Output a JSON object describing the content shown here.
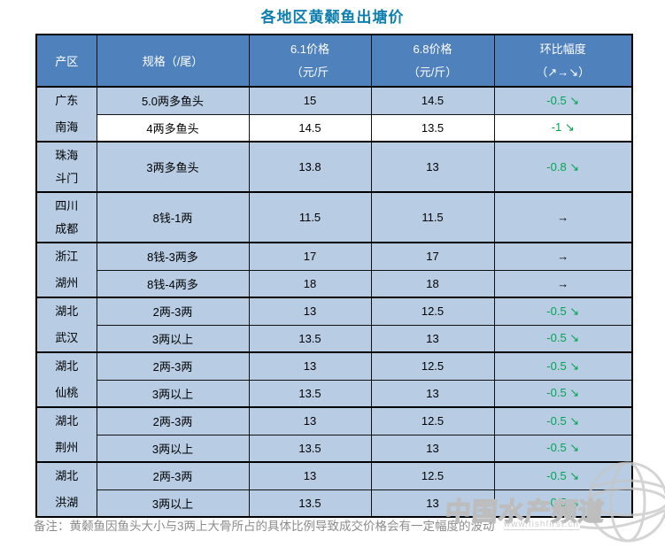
{
  "title": "各地区黄颡鱼出塘价",
  "colors": {
    "title_text": "#0f7fb0",
    "header_bg": "#4f81bd",
    "row_blue": "#b8cce4",
    "row_white": "#ffffff",
    "trend_down_green": "#00a651",
    "note_gray": "#8c8c8c",
    "watermark_gray": "#c3c3c3"
  },
  "table": {
    "header": {
      "region": "产区",
      "spec": "规格（/尾）",
      "p61_line1": "6.1价格",
      "p61_line2": "（元/斤",
      "p68_line1": "6.8价格",
      "p68_line2": "（元/斤）",
      "change_line1": "环比幅度",
      "change_line2": "（↗→↘）"
    },
    "groups": [
      {
        "region_lines": [
          "广东",
          "南海"
        ],
        "rows": [
          {
            "spec": "5.0两多鱼头",
            "p61": "15",
            "p68": "14.5",
            "change": "-0.5",
            "arrow": "↘",
            "trend": "down",
            "bg": "blue",
            "tall": false
          },
          {
            "spec": "4两多鱼头",
            "p61": "14.5",
            "p68": "13.5",
            "change": "-1",
            "arrow": "↘",
            "trend": "down",
            "bg": "white",
            "tall": false
          }
        ]
      },
      {
        "region_lines": [
          "珠海",
          "斗门"
        ],
        "rows": [
          {
            "spec": "3两多鱼头",
            "p61": "13.8",
            "p68": "13",
            "change": "-0.8",
            "arrow": "↘",
            "trend": "down",
            "bg": "blue",
            "tall": true
          }
        ]
      },
      {
        "region_lines": [
          "四川",
          "成都"
        ],
        "rows": [
          {
            "spec": "8钱-1两",
            "p61": "11.5",
            "p68": "11.5",
            "change": "",
            "arrow": "→",
            "trend": "flat",
            "bg": "blue",
            "tall": true
          }
        ]
      },
      {
        "region_lines": [
          "浙江",
          "湖州"
        ],
        "rows": [
          {
            "spec": "8钱-3两多",
            "p61": "17",
            "p68": "17",
            "change": "",
            "arrow": "→",
            "trend": "flat",
            "bg": "blue",
            "tall": false
          },
          {
            "spec": "8钱-4两多",
            "p61": "18",
            "p68": "18",
            "change": "",
            "arrow": "→",
            "trend": "flat",
            "bg": "blue",
            "tall": false
          }
        ]
      },
      {
        "region_lines": [
          "湖北",
          "武汉"
        ],
        "rows": [
          {
            "spec": "2两-3两",
            "p61": "13",
            "p68": "12.5",
            "change": "-0.5",
            "arrow": "↘",
            "trend": "down",
            "bg": "blue",
            "tall": false
          },
          {
            "spec": "3两以上",
            "p61": "13.5",
            "p68": "13",
            "change": "-0.5",
            "arrow": "↘",
            "trend": "down",
            "bg": "blue",
            "tall": false
          }
        ]
      },
      {
        "region_lines": [
          "湖北",
          "仙桃"
        ],
        "rows": [
          {
            "spec": "2两-3两",
            "p61": "13",
            "p68": "12.5",
            "change": "-0.5",
            "arrow": "↘",
            "trend": "down",
            "bg": "blue",
            "tall": false
          },
          {
            "spec": "3两以上",
            "p61": "13.5",
            "p68": "13",
            "change": "-0.5",
            "arrow": "↘",
            "trend": "down",
            "bg": "blue",
            "tall": false
          }
        ]
      },
      {
        "region_lines": [
          "湖北",
          "荆州"
        ],
        "rows": [
          {
            "spec": "2两-3两",
            "p61": "13",
            "p68": "12.5",
            "change": "-0.5",
            "arrow": "↘",
            "trend": "down",
            "bg": "blue",
            "tall": false
          },
          {
            "spec": "3两以上",
            "p61": "13.5",
            "p68": "13",
            "change": "-0.5",
            "arrow": "↘",
            "trend": "down",
            "bg": "blue",
            "tall": false
          }
        ]
      },
      {
        "region_lines": [
          "湖北",
          "洪湖"
        ],
        "rows": [
          {
            "spec": "2两-3两",
            "p61": "13",
            "p68": "12.5",
            "change": "-0.5",
            "arrow": "↘",
            "trend": "down",
            "bg": "blue",
            "tall": false
          },
          {
            "spec": "3两以上",
            "p61": "13.5",
            "p68": "13",
            "change": "-0.5",
            "arrow": "↘",
            "trend": "down",
            "bg": "blue",
            "tall": false
          }
        ]
      }
    ]
  },
  "note": "备注：黄颡鱼因鱼头大小与3两上大骨所占的具体比例导致成交价格会有一定幅度的波动",
  "watermark": {
    "name": "中国水产频道",
    "url": "www.fishfirst.cn"
  }
}
